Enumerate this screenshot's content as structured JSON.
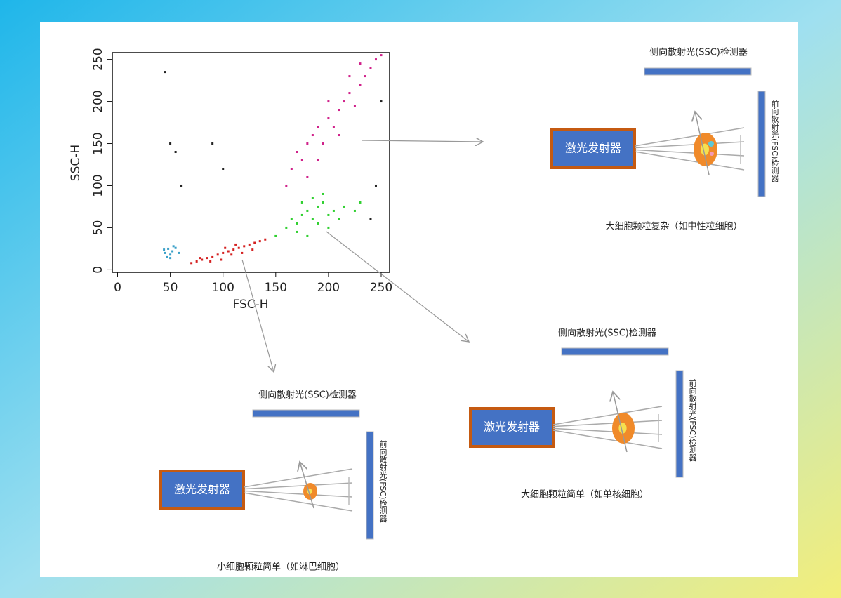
{
  "chart_data": {
    "type": "scatter",
    "x_label": "FSC-H",
    "y_label": "SSC-H",
    "xlim": [
      -5,
      258
    ],
    "ylim": [
      -3,
      258
    ],
    "xticks": [
      0,
      50,
      100,
      150,
      200,
      250
    ],
    "yticks": [
      0,
      50,
      100,
      150,
      200,
      250
    ],
    "series": [
      {
        "color": "#3aa0c8",
        "x": [
          45,
          48,
          50,
          52,
          55,
          47,
          53,
          58,
          50,
          44
        ],
        "y": [
          20,
          25,
          18,
          22,
          26,
          15,
          28,
          20,
          14,
          24
        ]
      },
      {
        "color": "#d42020",
        "x": [
          70,
          75,
          80,
          85,
          90,
          95,
          100,
          105,
          110,
          115,
          120,
          125,
          130,
          135,
          140,
          88,
          98,
          108,
          118,
          128,
          78,
          102,
          112
        ],
        "y": [
          8,
          10,
          12,
          14,
          15,
          18,
          20,
          22,
          24,
          26,
          28,
          30,
          32,
          34,
          36,
          10,
          12,
          18,
          20,
          24,
          14,
          26,
          30
        ]
      },
      {
        "color": "#30d030",
        "x": [
          150,
          160,
          165,
          170,
          175,
          180,
          185,
          190,
          195,
          200,
          205,
          210,
          215,
          170,
          180,
          190,
          200,
          175,
          185,
          195,
          225,
          230
        ],
        "y": [
          40,
          50,
          60,
          55,
          65,
          70,
          60,
          75,
          80,
          65,
          70,
          60,
          75,
          45,
          40,
          55,
          50,
          80,
          85,
          90,
          70,
          80
        ]
      },
      {
        "color": "#d0208a",
        "x": [
          160,
          165,
          170,
          175,
          180,
          185,
          190,
          195,
          200,
          205,
          210,
          215,
          220,
          225,
          230,
          235,
          240,
          245,
          250,
          180,
          190,
          200,
          210,
          220,
          230
        ],
        "y": [
          100,
          120,
          140,
          130,
          150,
          160,
          170,
          150,
          180,
          170,
          190,
          200,
          210,
          195,
          220,
          230,
          240,
          250,
          255,
          110,
          130,
          200,
          160,
          230,
          245
        ]
      },
      {
        "color": "#222222",
        "x": [
          45,
          50,
          55,
          60,
          90,
          100,
          250,
          245,
          240
        ],
        "y": [
          235,
          150,
          140,
          100,
          150,
          120,
          200,
          100,
          60
        ]
      }
    ]
  },
  "diagrams": [
    {
      "ssc": "侧向散射光(SSC)检测器",
      "laser": "激光发射器",
      "fsc": "前向散射光(FSC)检测器",
      "caption": "大细胞颗粒复杂（如中性粒细胞）"
    },
    {
      "ssc": "侧向散射光(SSC)检测器",
      "laser": "激光发射器",
      "fsc": "前向散射光(FSC)检测器",
      "caption": "大细胞颗粒简单（如单核细胞）"
    },
    {
      "ssc": "侧向散射光(SSC)检测器",
      "laser": "激光发射器",
      "fsc": "前向散射光(FSC)检测器",
      "caption": "小细胞颗粒简单（如淋巴细胞）"
    }
  ]
}
